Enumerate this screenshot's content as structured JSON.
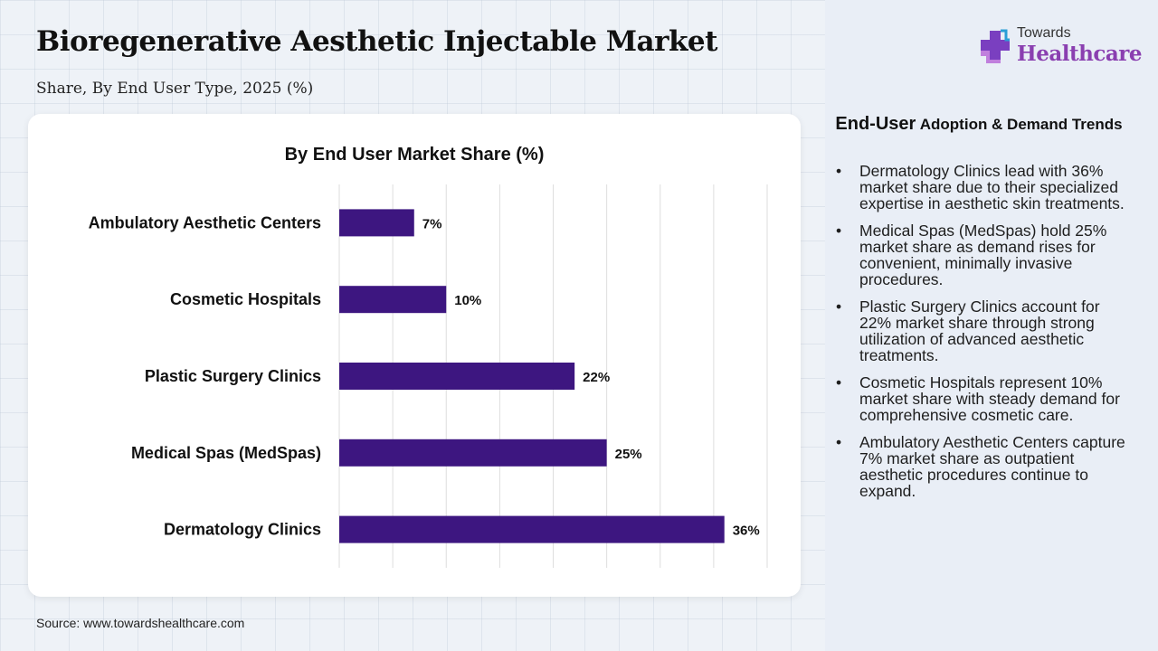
{
  "header": {
    "title": "Bioregenerative Aesthetic Injectable Market",
    "subtitle": "Share, By End User Type, 2025 (%)"
  },
  "logo": {
    "top_text": "Towards",
    "bottom_text": "Healthcare"
  },
  "chart_data": {
    "type": "bar",
    "orientation": "horizontal",
    "title": "By End User Market Share (%)",
    "categories": [
      "Ambulatory Aesthetic Centers",
      "Cosmetic Hospitals",
      "Plastic Surgery Clinics",
      "Medical Spas (MedSpas)",
      "Dermatology Clinics"
    ],
    "values": [
      7,
      10,
      22,
      25,
      36
    ],
    "data_labels": [
      "7%",
      "10%",
      "22%",
      "25%",
      "36%"
    ],
    "xlim": [
      0,
      40
    ],
    "grid": true,
    "bar_color": "#3d1680"
  },
  "trends": {
    "title_part1": "End-User",
    "title_part2": "Adoption & Demand Trends",
    "items": [
      "Dermatology Clinics lead with 36% market share due to their specialized expertise in aesthetic skin treatments.",
      "Medical Spas (MedSpas) hold 25% market share as demand rises for convenient, minimally invasive procedures.",
      "Plastic Surgery Clinics account for 22% market share through strong utilization of advanced aesthetic treatments.",
      "Cosmetic Hospitals represent 10% market share with steady demand for comprehensive cosmetic care.",
      "Ambulatory Aesthetic Centers capture 7% market share as outpatient aesthetic procedures continue to expand."
    ]
  },
  "footer": {
    "source": "Source: www.towardshealthcare.com"
  }
}
